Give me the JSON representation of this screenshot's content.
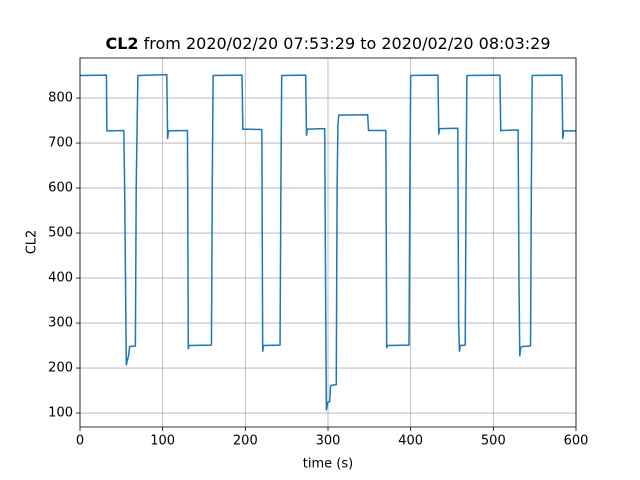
{
  "chart_data": {
    "type": "line",
    "title_bold": "CL2",
    "title": "from 2020/02/20 07:53:29 to 2020/02/20 08:03:29",
    "xlabel": "time (s)",
    "ylabel": "CL2",
    "x": [
      0,
      32,
      32.5,
      53,
      54,
      56,
      57,
      59,
      60,
      67,
      68,
      70,
      105,
      106,
      107,
      130,
      131,
      132,
      159,
      160,
      161,
      196,
      197,
      198,
      220,
      221,
      222,
      242,
      243,
      244,
      273,
      274,
      275,
      296,
      297,
      298,
      300,
      302,
      303,
      305,
      310,
      311,
      312,
      313,
      315,
      348,
      349,
      370,
      371,
      372,
      398,
      399,
      400,
      433,
      434,
      435,
      457,
      458,
      459,
      460,
      466,
      467,
      468,
      508,
      509,
      510,
      530,
      531,
      532,
      533,
      535,
      545,
      546,
      547,
      583,
      584,
      585,
      600
    ],
    "series": [
      {
        "name": "CL2",
        "color": "#1f77b4",
        "values": [
          850,
          851,
          727,
          728,
          600,
          207,
          215,
          230,
          248,
          249,
          600,
          850,
          852,
          710,
          727,
          728,
          243,
          250,
          251,
          600,
          850,
          851,
          730,
          731,
          730,
          237,
          250,
          251,
          600,
          850,
          851,
          717,
          731,
          732,
          400,
          107,
          125,
          125,
          160,
          162,
          163,
          600,
          740,
          762,
          762,
          763,
          728,
          728,
          245,
          250,
          251,
          600,
          850,
          851,
          720,
          732,
          733,
          300,
          237,
          250,
          251,
          600,
          850,
          851,
          727,
          728,
          729,
          400,
          227,
          245,
          248,
          249,
          600,
          850,
          851,
          710,
          727,
          727
        ]
      }
    ],
    "xlim": [
      0,
      600
    ],
    "xticks": [
      0,
      100,
      200,
      300,
      400,
      500,
      600
    ],
    "ylim": [
      69,
      889
    ],
    "yticks": [
      100,
      200,
      300,
      400,
      500,
      600,
      700,
      800
    ],
    "grid": true
  }
}
